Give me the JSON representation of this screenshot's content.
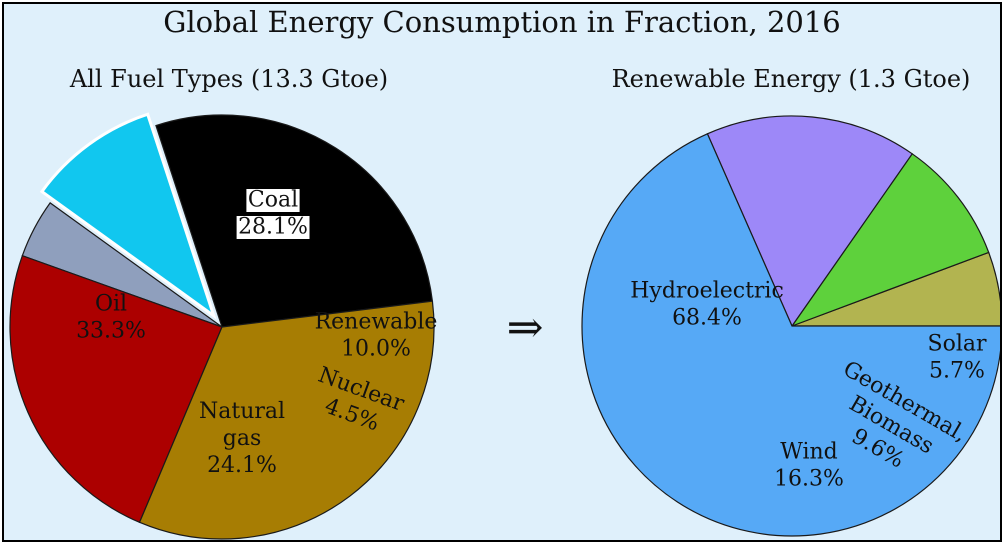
{
  "colors": {
    "background": "#dff0fb",
    "coal": "#000000",
    "renewable": "#11c7ef",
    "nuclear": "#8f9fbd",
    "natural_gas": "#ac0000",
    "oil": "#a77d03",
    "hydroelectric": "#56a9f6",
    "wind": "#9d88f8",
    "geothermal_biomass": "#5ed13c",
    "solar": "#b2b450"
  },
  "figure": {
    "title": "Global Energy Consumption in Fraction, 2016",
    "arrow": "⇒"
  },
  "chart_data": [
    {
      "type": "pie",
      "title": "All Fuel Types (13.3 Gtoe)",
      "slices": [
        {
          "lines": [
            "Coal"
          ],
          "value": 28.1,
          "value_label": "28.1%",
          "color_key": "coal"
        },
        {
          "lines": [
            "Renewable"
          ],
          "value": 10.0,
          "value_label": "10.0%",
          "color_key": "renewable",
          "exploded": true
        },
        {
          "lines": [
            "Nuclear"
          ],
          "value": 4.5,
          "value_label": "4.5%",
          "color_key": "nuclear"
        },
        {
          "lines": [
            "Natural",
            "gas"
          ],
          "value": 24.1,
          "value_label": "24.1%",
          "color_key": "natural_gas"
        },
        {
          "lines": [
            "Oil"
          ],
          "value": 33.3,
          "value_label": "33.3%",
          "color_key": "oil"
        }
      ]
    },
    {
      "type": "pie",
      "title": "Renewable Energy (1.3 Gtoe)",
      "slices": [
        {
          "lines": [
            "Solar"
          ],
          "value": 5.7,
          "value_label": "5.7%",
          "color_key": "solar"
        },
        {
          "lines": [
            "Geothermal,",
            "Biomass"
          ],
          "value": 9.6,
          "value_label": "9.6%",
          "color_key": "geothermal_biomass"
        },
        {
          "lines": [
            "Wind"
          ],
          "value": 16.3,
          "value_label": "16.3%",
          "color_key": "wind"
        },
        {
          "lines": [
            "Hydroelectric"
          ],
          "value": 68.4,
          "value_label": "68.4%",
          "color_key": "hydroelectric"
        }
      ]
    }
  ]
}
